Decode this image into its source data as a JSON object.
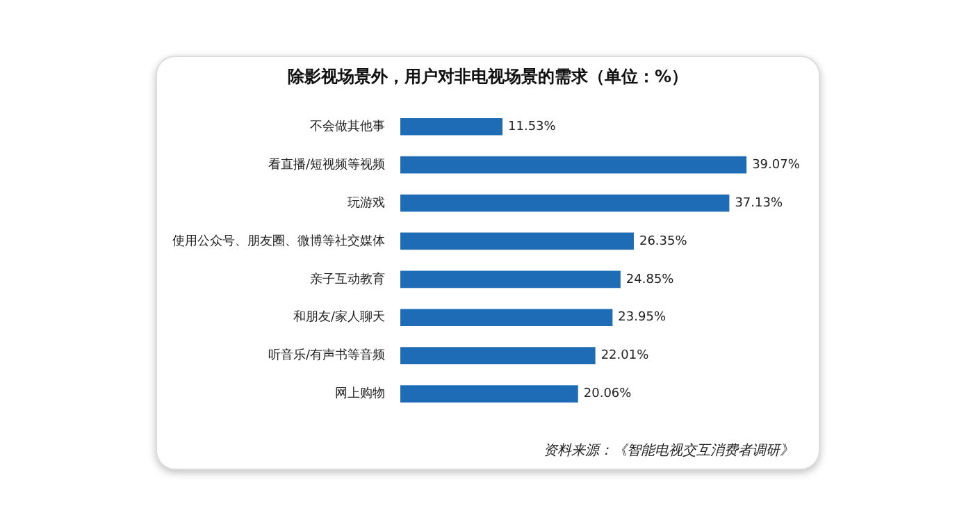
{
  "chart_data": {
    "type": "bar",
    "orientation": "horizontal",
    "title": "除影视场景外，用户对非电视场景的需求（单位：%）",
    "categories": [
      "不会做其他事",
      "看直播/短视频等视频",
      "玩游戏",
      "使用公众号、朋友圈、微博等社交媒体",
      "亲子互动教育",
      "和朋友/家人聊天",
      "听音乐/有声书等音频",
      "网上购物"
    ],
    "values": [
      11.53,
      39.07,
      37.13,
      26.35,
      24.85,
      23.95,
      22.01,
      20.06
    ],
    "value_labels": [
      "11.53%",
      "39.07%",
      "37.13%",
      "26.35%",
      "24.85%",
      "23.95%",
      "22.01%",
      "20.06%"
    ],
    "color": "#1f6cb6",
    "grid": false,
    "legend": false,
    "tick_labels": "y",
    "annotations": [
      "资料来源：《智能电视交互消费者调研》"
    ]
  }
}
